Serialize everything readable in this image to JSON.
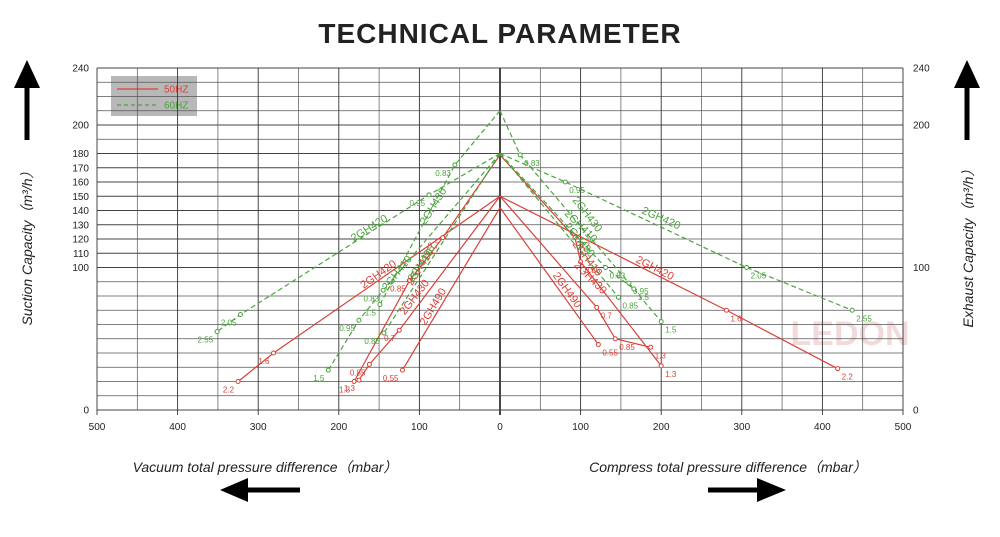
{
  "title": "TECHNICAL PARAMETER",
  "watermark": "LEDON",
  "legend": [
    {
      "name": "50HZ",
      "color": "#d9413a",
      "dashed": false
    },
    {
      "name": "60HZ",
      "color": "#4aa53c",
      "dashed": true
    }
  ],
  "chart_data": [
    {
      "type": "line",
      "ylabel": "Suction Capacity（m³/h）",
      "xlabel": "Vacuum total pressure difference（mbar）",
      "xlim": [
        500,
        0
      ],
      "xticks": [
        500,
        400,
        300,
        200,
        100,
        0
      ],
      "xminor": [
        450,
        350,
        250,
        150,
        50
      ],
      "ylim": [
        0,
        240
      ],
      "yticks": [
        0,
        100,
        110,
        120,
        130,
        140,
        150,
        160,
        170,
        180,
        200,
        240
      ],
      "yminor": [
        10,
        20,
        30,
        40,
        50,
        60,
        70,
        80,
        90,
        190,
        210,
        220,
        230
      ],
      "series": [
        {
          "name": "2GH420",
          "frequency": "50HZ",
          "x": [
            0,
            281,
            325
          ],
          "y": [
            150,
            40,
            20
          ],
          "point_labels": [
            null,
            1.6,
            2.2
          ]
        },
        {
          "name": "2GH410",
          "frequency": "50HZ",
          "x": [
            0,
            71,
            112,
            181
          ],
          "y": [
            179,
            121,
            91,
            20
          ],
          "point_labels": [
            null,
            0.7,
            0.85,
            1.3
          ]
        },
        {
          "name": "2GH430",
          "frequency": "50HZ",
          "x": [
            0,
            125,
            162,
            175
          ],
          "y": [
            150,
            56,
            32,
            21
          ],
          "point_labels": [
            null,
            0.7,
            0.85,
            1.3
          ]
        },
        {
          "name": "2GH490",
          "frequency": "50HZ",
          "x": [
            0,
            121
          ],
          "y": [
            142,
            28
          ],
          "point_labels": [
            null,
            0.55
          ]
        },
        {
          "name": "2GH420",
          "frequency": "60HZ",
          "x": [
            0,
            88,
            322,
            351
          ],
          "y": [
            180,
            151,
            67,
            55
          ],
          "point_labels": [
            null,
            0.95,
            2.05,
            2.55
          ]
        },
        {
          "name": "2GH430",
          "frequency": "60HZ",
          "x": [
            0,
            56,
            149
          ],
          "y": [
            210,
            172,
            74
          ],
          "point_labels": [
            null,
            0.83,
            1.5
          ]
        },
        {
          "name": "2GH410",
          "frequency": "60HZ",
          "x": [
            0,
            145,
            175,
            213
          ],
          "y": [
            180,
            84,
            63,
            28
          ],
          "point_labels": [
            null,
            0.83,
            0.95,
            1.5
          ]
        },
        {
          "name": "2GH490",
          "frequency": "60HZ",
          "x": [
            0,
            144
          ],
          "y": [
            180,
            54
          ],
          "point_labels": [
            null,
            0.85
          ]
        }
      ]
    },
    {
      "type": "line",
      "ylabel": "Exhaust Capacity（m³/h）",
      "xlabel": "Compress total pressure difference（mbar）",
      "xlim": [
        0,
        500
      ],
      "xticks": [
        100,
        200,
        300,
        400,
        500
      ],
      "xminor": [
        50,
        150,
        250,
        350,
        450
      ],
      "ylim": [
        0,
        240
      ],
      "yticks": [
        0,
        100,
        200,
        240
      ],
      "yminor": [
        10,
        20,
        30,
        40,
        50,
        60,
        70,
        80,
        90,
        110,
        120,
        130,
        140,
        150,
        160,
        170,
        180,
        190,
        210,
        220,
        230
      ],
      "series": [
        {
          "name": "2GH420",
          "frequency": "50HZ",
          "x": [
            0,
            281,
            419
          ],
          "y": [
            150,
            70,
            29
          ],
          "point_labels": [
            null,
            1.6,
            2.2
          ]
        },
        {
          "name": "2GH410",
          "frequency": "50HZ",
          "x": [
            0,
            93,
            100,
            200
          ],
          "y": [
            179,
            121,
            104,
            31
          ],
          "point_labels": [
            null,
            0.7,
            0.85,
            1.3
          ]
        },
        {
          "name": "2GH430",
          "frequency": "50HZ",
          "x": [
            0,
            120,
            143,
            187
          ],
          "y": [
            150,
            72,
            50,
            44
          ],
          "point_labels": [
            null,
            0.7,
            0.85,
            1.3
          ]
        },
        {
          "name": "2GH490",
          "frequency": "50HZ",
          "x": [
            0,
            122
          ],
          "y": [
            142,
            46
          ],
          "point_labels": [
            null,
            0.55
          ]
        },
        {
          "name": "2GH420",
          "frequency": "60HZ",
          "x": [
            0,
            81,
            306,
            437
          ],
          "y": [
            180,
            160,
            100,
            70
          ],
          "point_labels": [
            null,
            0.95,
            2.05,
            2.55
          ]
        },
        {
          "name": "2GH430",
          "frequency": "60HZ",
          "x": [
            0,
            25,
            160,
            200
          ],
          "y": [
            210,
            179,
            89,
            62
          ],
          "point_labels": [
            null,
            0.83,
            0.95,
            1.5
          ]
        },
        {
          "name": "2GH410",
          "frequency": "60HZ",
          "x": [
            0,
            131,
            166
          ],
          "y": [
            180,
            100,
            85
          ],
          "point_labels": [
            null,
            0.83,
            1.5
          ]
        },
        {
          "name": "2GH490",
          "frequency": "60HZ",
          "x": [
            0,
            147
          ],
          "y": [
            180,
            79
          ],
          "point_labels": [
            null,
            0.85
          ]
        }
      ]
    }
  ]
}
